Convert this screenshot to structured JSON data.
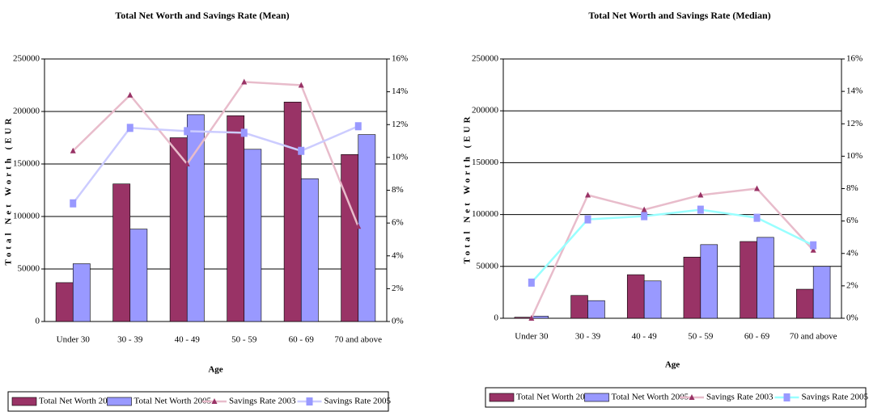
{
  "chart_data": [
    {
      "type": "bar",
      "title": "Total Net Worth and Savings Rate (Mean)",
      "x_label": "Age",
      "y_label": "Total Net Worth (EUR",
      "categories": [
        "Under 30",
        "30 - 39",
        "40 - 49",
        "50 - 59",
        "60 - 69",
        "70 and above"
      ],
      "series": [
        {
          "name": "Total Net Worth 2003",
          "color": "#993366",
          "values": [
            37000,
            131000,
            175000,
            196000,
            209000,
            159000
          ]
        },
        {
          "name": "Total Net Worth 2005",
          "color": "#9999ff",
          "values": [
            55000,
            88000,
            197000,
            164000,
            136000,
            178000
          ]
        },
        {
          "name": "Savings Rate 2003",
          "color": "#e8bccb",
          "marker": "triangle",
          "marker_color": "#993366",
          "axis": "y2",
          "values": [
            10.4,
            13.8,
            9.6,
            14.6,
            14.4,
            5.8
          ]
        },
        {
          "name": "Savings Rate 2005",
          "color": "#ccccff",
          "marker": "square",
          "marker_color": "#9999ff",
          "axis": "y2",
          "values": [
            7.2,
            11.8,
            11.6,
            11.5,
            10.4,
            11.9
          ]
        }
      ],
      "ylim": [
        0,
        250000
      ],
      "yticks": [
        0,
        50000,
        100000,
        150000,
        200000,
        250000
      ],
      "y2lim": [
        0,
        16
      ],
      "y2ticks": [
        {
          "value": 0,
          "label": "0%"
        },
        {
          "value": 2,
          "label": "2%"
        },
        {
          "value": 4,
          "label": "4%"
        },
        {
          "value": 6,
          "label": "6%"
        },
        {
          "value": 8,
          "label": "8%"
        },
        {
          "value": 10,
          "label": "10%"
        },
        {
          "value": 12,
          "label": "12%"
        },
        {
          "value": 14,
          "label": "14%"
        },
        {
          "value": 16,
          "label": "16%"
        }
      ],
      "grid": true,
      "legend": "bottom"
    },
    {
      "type": "bar",
      "title": "Total Net Worth and Savings Rate (Median)",
      "x_label": "Age",
      "y_label": "Total Net Worth (EUR",
      "categories": [
        "Under 30",
        "30 - 39",
        "40 - 49",
        "50 - 59",
        "60 - 69",
        "70 and above"
      ],
      "series": [
        {
          "name": "Total Net Worth 2003",
          "color": "#993366",
          "values": [
            1000,
            22000,
            42000,
            59000,
            74000,
            28000
          ]
        },
        {
          "name": "Total Net Worth 2005",
          "color": "#9999ff",
          "values": [
            2000,
            17000,
            36000,
            71000,
            78000,
            50000
          ]
        },
        {
          "name": "Savings Rate 2003",
          "color": "#e8bccb",
          "marker": "triangle",
          "marker_color": "#993366",
          "axis": "y2",
          "values": [
            0,
            7.6,
            6.7,
            7.6,
            8.0,
            4.2
          ]
        },
        {
          "name": "Savings Rate 2005",
          "color": "#99ffff",
          "marker": "square",
          "marker_color": "#9999ff",
          "axis": "y2",
          "values": [
            2.2,
            6.1,
            6.3,
            6.7,
            6.2,
            4.5
          ]
        }
      ],
      "ylim": [
        0,
        250000
      ],
      "yticks": [
        0,
        50000,
        100000,
        150000,
        200000,
        250000
      ],
      "y2lim": [
        0,
        16
      ],
      "y2ticks": [
        {
          "value": 0,
          "label": "0%"
        },
        {
          "value": 2,
          "label": "2%"
        },
        {
          "value": 4,
          "label": "4%"
        },
        {
          "value": 6,
          "label": "6%"
        },
        {
          "value": 8,
          "label": "8%"
        },
        {
          "value": 10,
          "label": "10%"
        },
        {
          "value": 12,
          "label": "12%"
        },
        {
          "value": 14,
          "label": "14%"
        },
        {
          "value": 16,
          "label": "16%"
        }
      ],
      "grid": true,
      "legend": "bottom"
    }
  ]
}
